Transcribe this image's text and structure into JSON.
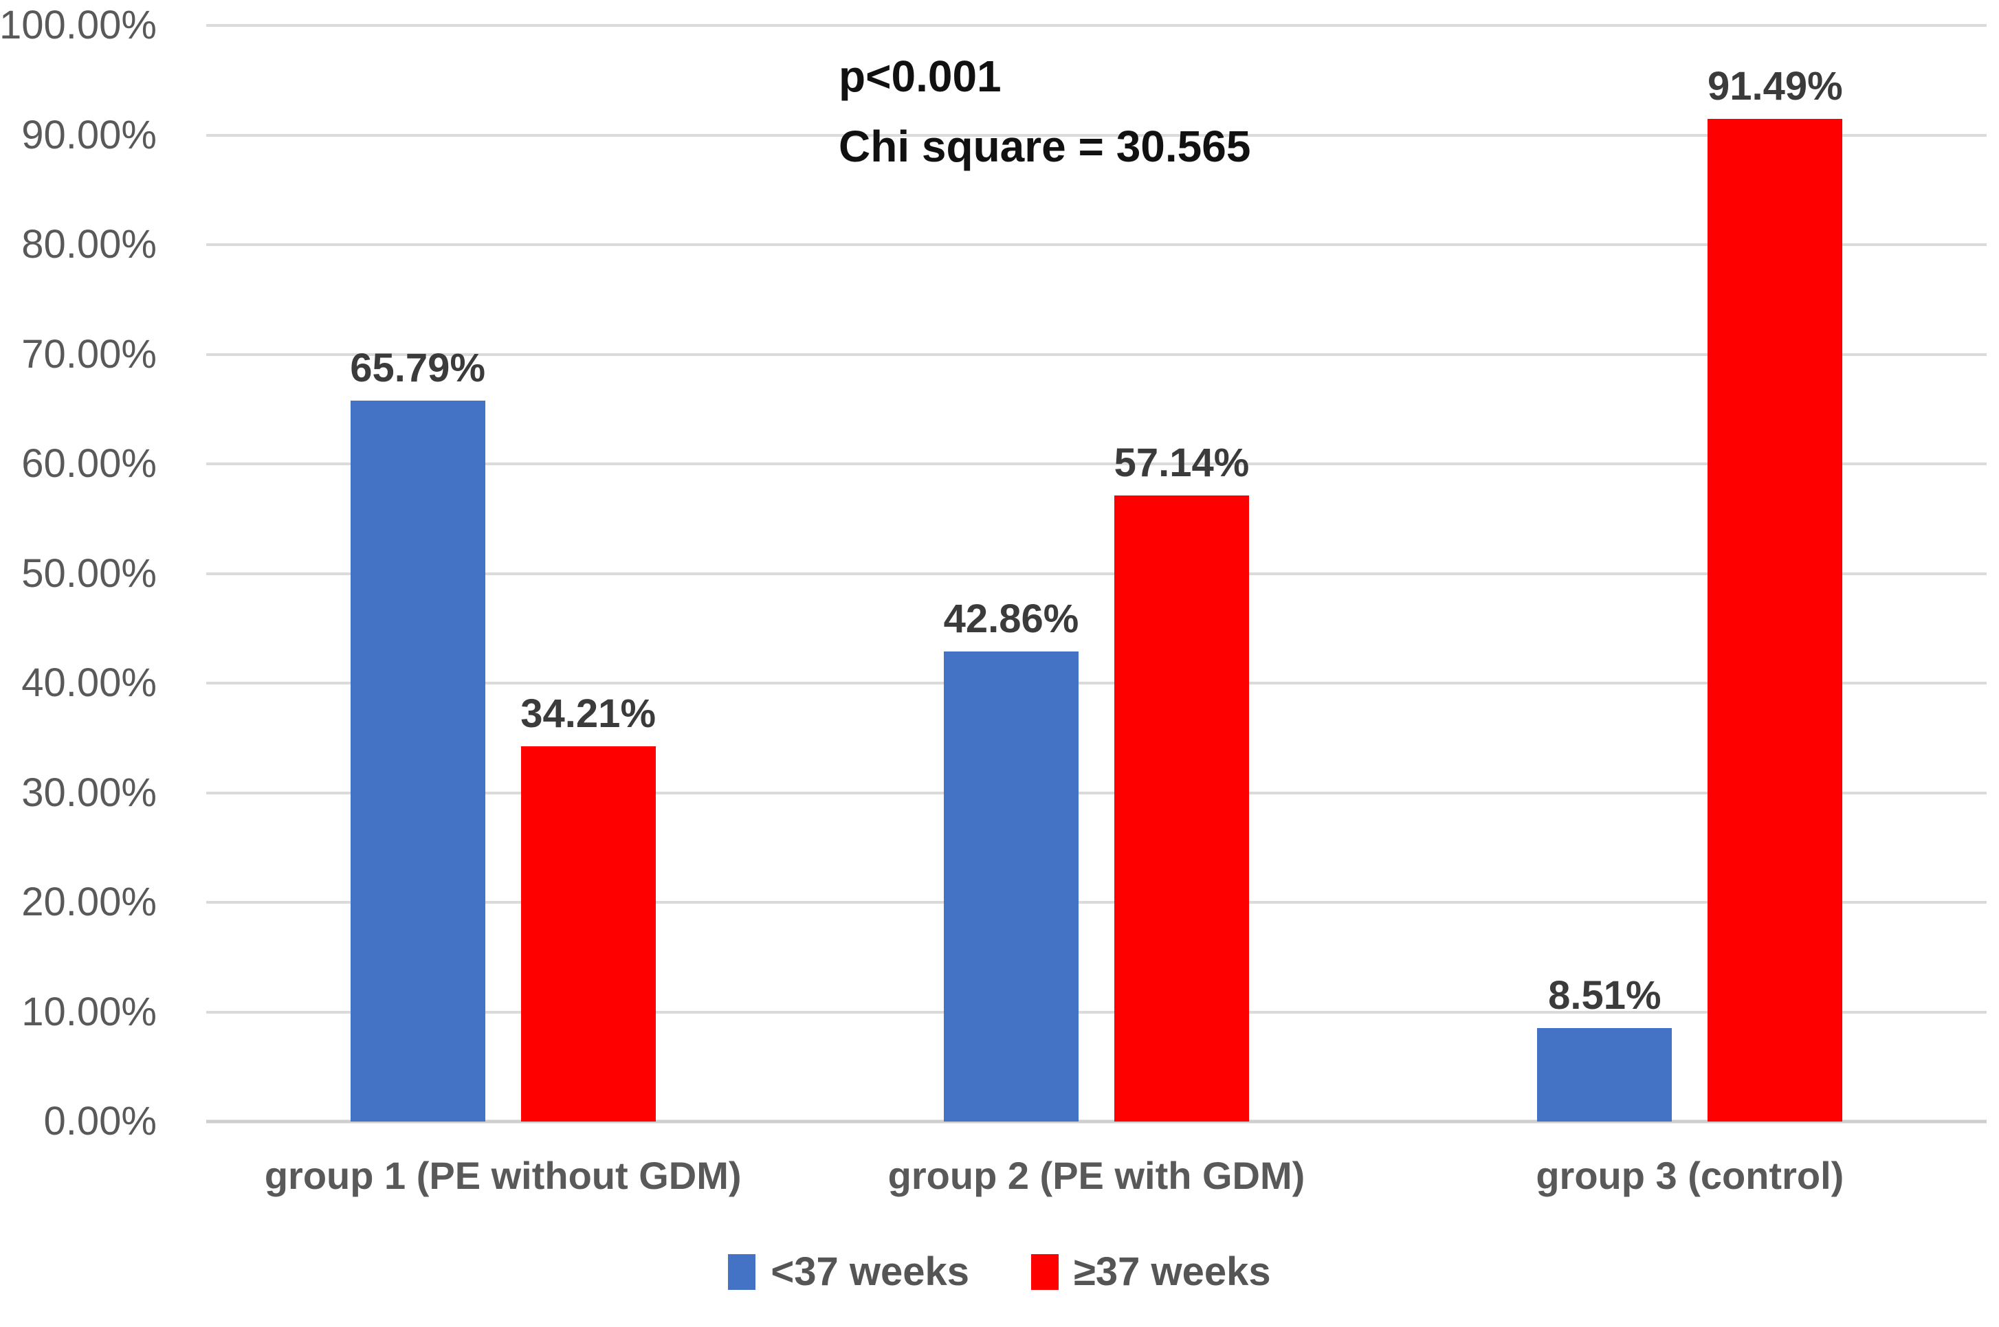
{
  "chart_data": {
    "type": "bar",
    "title": "",
    "categories": [
      "group 1 (PE without GDM)",
      "group 2 (PE with GDM)",
      "group 3 (control)"
    ],
    "series": [
      {
        "name": "<37 weeks",
        "color": "#4472C4",
        "values": [
          65.79,
          42.86,
          8.51
        ],
        "labels": [
          "65.79%",
          "42.86%",
          "8.51%"
        ]
      },
      {
        "name": "≥37 weeks",
        "color": "#FF0000",
        "values": [
          34.21,
          57.14,
          91.49
        ],
        "labels": [
          "34.21%",
          "57.14%",
          "91.49%"
        ]
      }
    ],
    "annotation": [
      "p<0.001",
      "Chi square = 30.565"
    ],
    "y_axis": {
      "min": 0,
      "max": 100,
      "step": 10,
      "tick_labels": [
        "0.00%",
        "10.00%",
        "20.00%",
        "30.00%",
        "40.00%",
        "50.00%",
        "60.00%",
        "70.00%",
        "80.00%",
        "90.00%",
        "100.00%"
      ]
    },
    "xlabel": "",
    "ylabel": "",
    "grid": true,
    "legend_position": "bottom"
  },
  "colors": {
    "series_blue": "#4472C4",
    "series_red": "#FF0000",
    "gridline": "#DADADA",
    "axis_text": "#595959",
    "value_label_text": "#3B3B3B",
    "annotation_text": "#111111"
  }
}
